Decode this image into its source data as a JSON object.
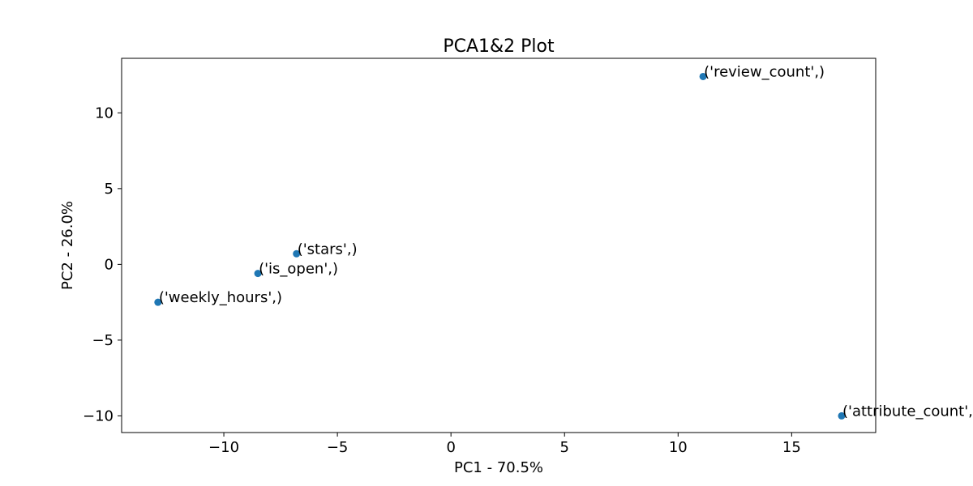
{
  "chart_data": {
    "type": "scatter",
    "title": "PCA1&2 Plot",
    "xlabel": "PC1 - 70.5%",
    "ylabel": "PC2 - 26.0%",
    "xlim": [
      -14.5,
      18.7
    ],
    "ylim": [
      -11.1,
      13.6
    ],
    "xticks": [
      -10,
      -5,
      0,
      5,
      10,
      15
    ],
    "yticks": [
      -10,
      -5,
      0,
      5,
      10
    ],
    "xtick_labels": [
      "−10",
      "−5",
      "0",
      "5",
      "10",
      "15"
    ],
    "ytick_labels": [
      "−10",
      "−5",
      "0",
      "5",
      "10"
    ],
    "grid": false,
    "point_color": "#1f77b4",
    "points": [
      {
        "label": "('review_count',)",
        "x": 11.1,
        "y": 12.4
      },
      {
        "label": "('stars',)",
        "x": -6.8,
        "y": 0.7
      },
      {
        "label": "('is_open',)",
        "x": -8.5,
        "y": -0.6
      },
      {
        "label": "('weekly_hours',)",
        "x": -12.9,
        "y": -2.5
      },
      {
        "label": "('attribute_count',)",
        "x": 17.2,
        "y": -10.0
      }
    ]
  }
}
